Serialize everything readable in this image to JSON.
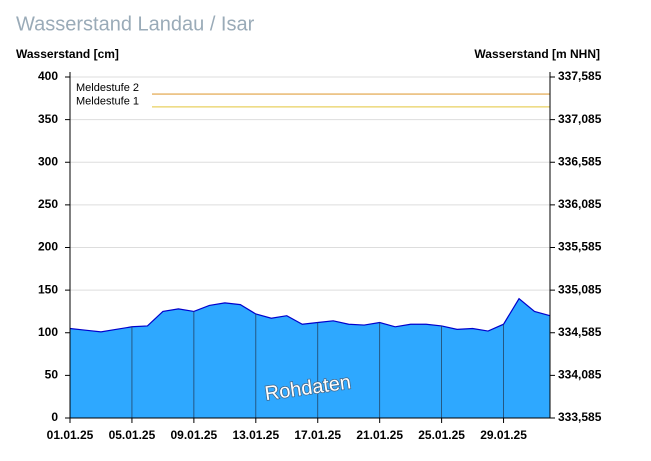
{
  "chart_data": {
    "type": "area",
    "title": "Wasserstand Landau / Isar",
    "y_label": "Wasserstand [cm]",
    "y2_label": "Wasserstand [m NHN]",
    "annotation": "Rohdaten",
    "x": [
      "01.01.25",
      "02.01.25",
      "03.01.25",
      "04.01.25",
      "05.01.25",
      "06.01.25",
      "07.01.25",
      "08.01.25",
      "09.01.25",
      "10.01.25",
      "11.01.25",
      "12.01.25",
      "13.01.25",
      "14.01.25",
      "15.01.25",
      "16.01.25",
      "17.01.25",
      "18.01.25",
      "19.01.25",
      "20.01.25",
      "21.01.25",
      "22.01.25",
      "23.01.25",
      "24.01.25",
      "25.01.25",
      "26.01.25",
      "27.01.25",
      "28.01.25",
      "29.01.25",
      "30.01.25",
      "31.01.25",
      "01.02.25"
    ],
    "series": [
      {
        "name": "Wasserstand",
        "color": "#2ea8ff",
        "line_color": "#0000cc",
        "values": [
          105,
          103,
          101,
          104,
          107,
          108,
          125,
          128,
          125,
          132,
          135,
          133,
          122,
          117,
          120,
          110,
          112,
          114,
          110,
          109,
          112,
          107,
          110,
          110,
          108,
          104,
          105,
          102,
          110,
          140,
          125,
          120
        ]
      }
    ],
    "xlim": [
      "01.01.25",
      "01.02.25"
    ],
    "xticks": [
      "01.01.25",
      "05.01.25",
      "09.01.25",
      "13.01.25",
      "17.01.25",
      "21.01.25",
      "25.01.25",
      "29.01.25"
    ],
    "ylim": [
      0,
      400
    ],
    "yticks": [
      0,
      50,
      100,
      150,
      200,
      250,
      300,
      350,
      400
    ],
    "y2lim": [
      333.585,
      337.585
    ],
    "y2ticks": [
      {
        "value": 333.585,
        "label": "333,585"
      },
      {
        "value": 334.085,
        "label": "334,085"
      },
      {
        "value": 334.585,
        "label": "334,585"
      },
      {
        "value": 335.085,
        "label": "335,085"
      },
      {
        "value": 335.585,
        "label": "335,585"
      },
      {
        "value": 336.085,
        "label": "336,085"
      },
      {
        "value": 336.585,
        "label": "336,585"
      },
      {
        "value": 337.085,
        "label": "337,085"
      },
      {
        "value": 337.585,
        "label": "337,585"
      }
    ],
    "thresholds": [
      {
        "label": "Meldestufe 2",
        "value": 380,
        "color": "#e0a040"
      },
      {
        "label": "Meldestufe 1",
        "value": 365,
        "color": "#e8d060"
      }
    ],
    "grid": true
  }
}
